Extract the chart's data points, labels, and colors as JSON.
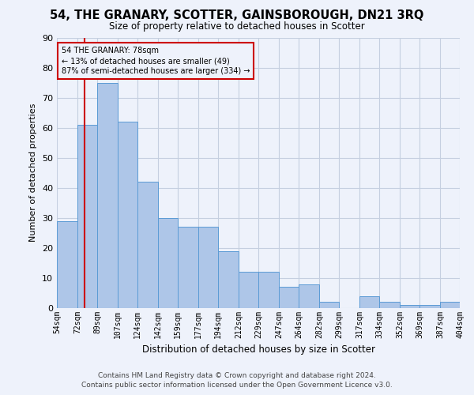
{
  "title1": "54, THE GRANARY, SCOTTER, GAINSBOROUGH, DN21 3RQ",
  "title2": "Size of property relative to detached houses in Scotter",
  "xlabel": "Distribution of detached houses by size in Scotter",
  "ylabel": "Number of detached properties",
  "annotation_line1": "54 THE GRANARY: 78sqm",
  "annotation_line2": "← 13% of detached houses are smaller (49)",
  "annotation_line3": "87% of semi-detached houses are larger (334) →",
  "footer1": "Contains HM Land Registry data © Crown copyright and database right 2024.",
  "footer2": "Contains public sector information licensed under the Open Government Licence v3.0.",
  "bar_left_edges": [
    54,
    72,
    89,
    107,
    124,
    142,
    159,
    177,
    194,
    212,
    229,
    247,
    264,
    282,
    299,
    317,
    334,
    352,
    369,
    387
  ],
  "bar_widths": [
    18,
    17,
    18,
    17,
    18,
    17,
    18,
    17,
    18,
    17,
    18,
    17,
    18,
    17,
    18,
    17,
    18,
    17,
    18,
    17
  ],
  "bar_heights": [
    29,
    61,
    75,
    62,
    42,
    30,
    27,
    27,
    19,
    12,
    12,
    7,
    8,
    2,
    0,
    4,
    2,
    1,
    1,
    2
  ],
  "bar_color": "#aec6e8",
  "bar_edge_color": "#5b9bd5",
  "highlight_x": 78,
  "highlight_color": "#cc0000",
  "annotation_box_color": "#cc0000",
  "background_color": "#eef2fb",
  "ylim": [
    0,
    90
  ],
  "xlim": [
    54,
    404
  ],
  "tick_labels": [
    "54sqm",
    "72sqm",
    "89sqm",
    "107sqm",
    "124sqm",
    "142sqm",
    "159sqm",
    "177sqm",
    "194sqm",
    "212sqm",
    "229sqm",
    "247sqm",
    "264sqm",
    "282sqm",
    "299sqm",
    "317sqm",
    "334sqm",
    "352sqm",
    "369sqm",
    "387sqm",
    "404sqm"
  ],
  "tick_positions": [
    54,
    72,
    89,
    107,
    124,
    142,
    159,
    177,
    194,
    212,
    229,
    247,
    264,
    282,
    299,
    317,
    334,
    352,
    369,
    387,
    404
  ],
  "title1_fontsize": 10.5,
  "title2_fontsize": 8.5,
  "xlabel_fontsize": 8.5,
  "ylabel_fontsize": 8,
  "tick_fontsize": 7,
  "footer_fontsize": 6.5
}
